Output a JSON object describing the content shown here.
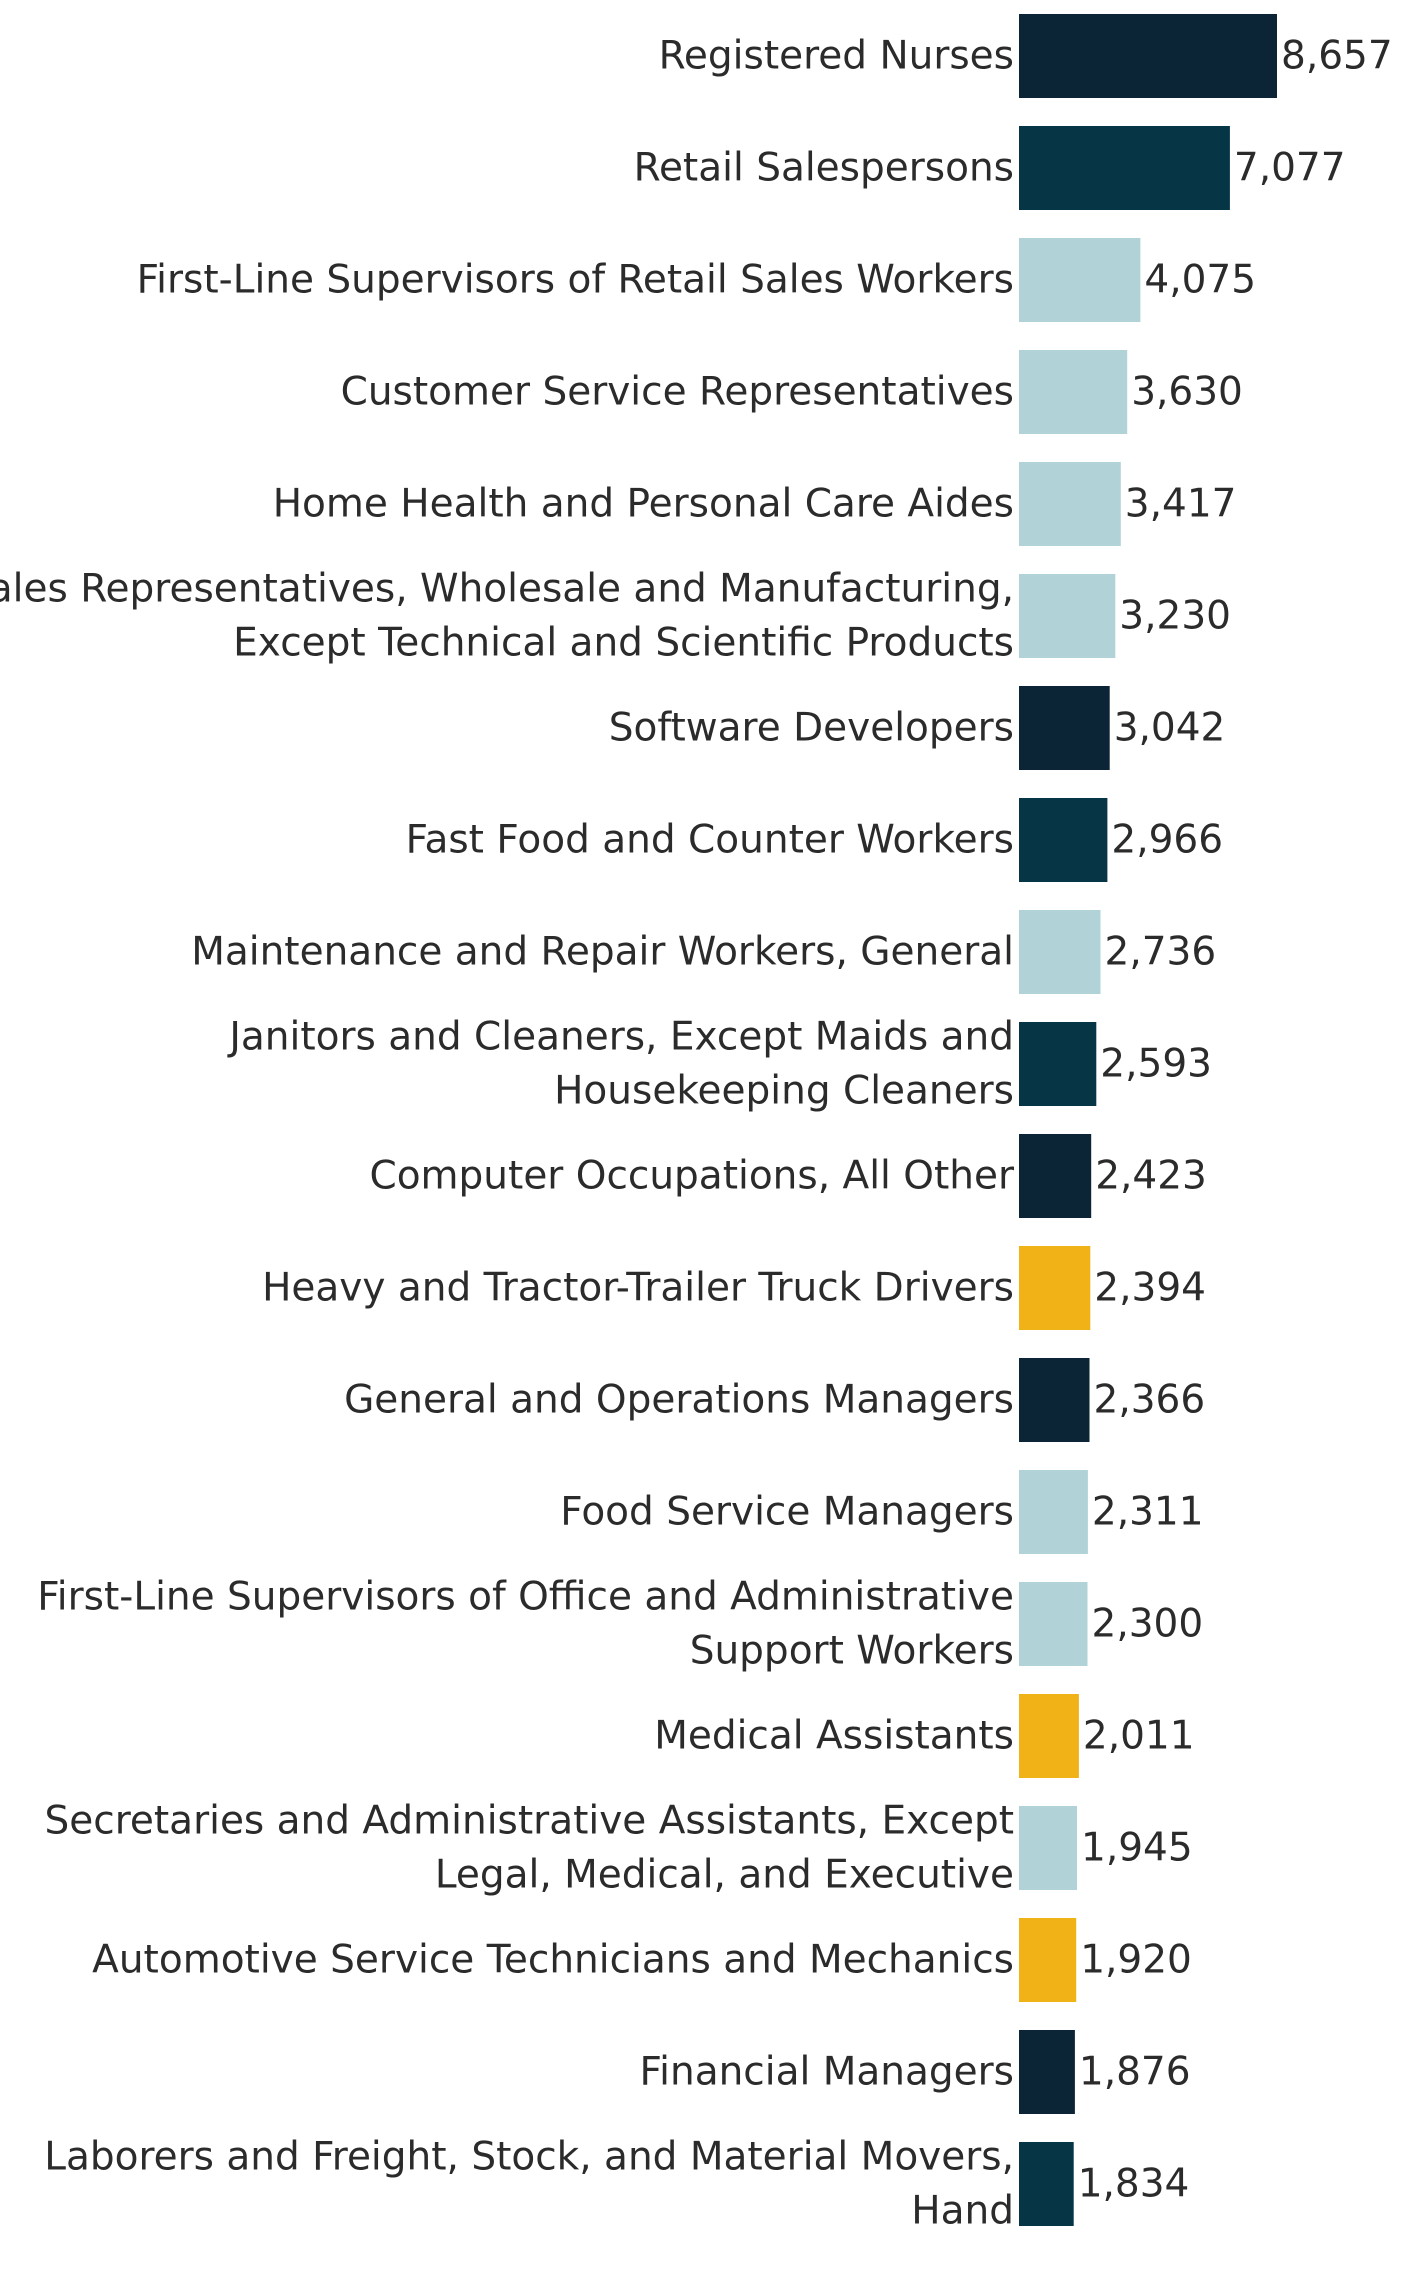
{
  "chart_data": {
    "type": "bar",
    "orientation": "horizontal",
    "title": "",
    "xlabel": "",
    "ylabel": "",
    "grid": false,
    "legend": "none",
    "colors": {
      "dark_navy": "#0c2536",
      "dark_teal": "#063546",
      "light_blue": "#b1d3d8",
      "gold": "#f0b217"
    },
    "items": [
      {
        "label": [
          "Registered Nurses"
        ],
        "value": 8657,
        "value_label": "8,657",
        "color": "dark_navy"
      },
      {
        "label": [
          "Retail Salespersons"
        ],
        "value": 7077,
        "value_label": "7,077",
        "color": "dark_teal"
      },
      {
        "label": [
          "First-Line Supervisors of Retail Sales Workers"
        ],
        "value": 4075,
        "value_label": "4,075",
        "color": "light_blue"
      },
      {
        "label": [
          "Customer Service Representatives"
        ],
        "value": 3630,
        "value_label": "3,630",
        "color": "light_blue"
      },
      {
        "label": [
          "Home Health and Personal Care Aides"
        ],
        "value": 3417,
        "value_label": "3,417",
        "color": "light_blue"
      },
      {
        "label": [
          "Sales Representatives, Wholesale and Manufacturing,",
          "Except Technical and Scientific Products"
        ],
        "value": 3230,
        "value_label": "3,230",
        "color": "light_blue"
      },
      {
        "label": [
          "Software Developers"
        ],
        "value": 3042,
        "value_label": "3,042",
        "color": "dark_navy"
      },
      {
        "label": [
          "Fast Food and Counter Workers"
        ],
        "value": 2966,
        "value_label": "2,966",
        "color": "dark_teal"
      },
      {
        "label": [
          "Maintenance and Repair Workers, General"
        ],
        "value": 2736,
        "value_label": "2,736",
        "color": "light_blue"
      },
      {
        "label": [
          "Janitors and Cleaners, Except Maids and",
          "Housekeeping Cleaners"
        ],
        "value": 2593,
        "value_label": "2,593",
        "color": "dark_teal"
      },
      {
        "label": [
          "Computer Occupations, All Other"
        ],
        "value": 2423,
        "value_label": "2,423",
        "color": "dark_navy"
      },
      {
        "label": [
          "Heavy and Tractor-Trailer Truck Drivers"
        ],
        "value": 2394,
        "value_label": "2,394",
        "color": "gold"
      },
      {
        "label": [
          "General and Operations Managers"
        ],
        "value": 2366,
        "value_label": "2,366",
        "color": "dark_navy"
      },
      {
        "label": [
          "Food Service Managers"
        ],
        "value": 2311,
        "value_label": "2,311",
        "color": "light_blue"
      },
      {
        "label": [
          "First-Line Supervisors of Office and Administrative",
          "Support Workers"
        ],
        "value": 2300,
        "value_label": "2,300",
        "color": "light_blue"
      },
      {
        "label": [
          "Medical Assistants"
        ],
        "value": 2011,
        "value_label": "2,011",
        "color": "gold"
      },
      {
        "label": [
          "Secretaries and Administrative Assistants, Except",
          "Legal, Medical, and Executive"
        ],
        "value": 1945,
        "value_label": "1,945",
        "color": "light_blue"
      },
      {
        "label": [
          "Automotive Service Technicians and Mechanics"
        ],
        "value": 1920,
        "value_label": "1,920",
        "color": "gold"
      },
      {
        "label": [
          "Financial Managers"
        ],
        "value": 1876,
        "value_label": "1,876",
        "color": "dark_navy"
      },
      {
        "label": [
          "Laborers and Freight, Stock, and Material Movers,",
          "Hand"
        ],
        "value": 1834,
        "value_label": "1,834",
        "color": "dark_teal"
      }
    ]
  }
}
